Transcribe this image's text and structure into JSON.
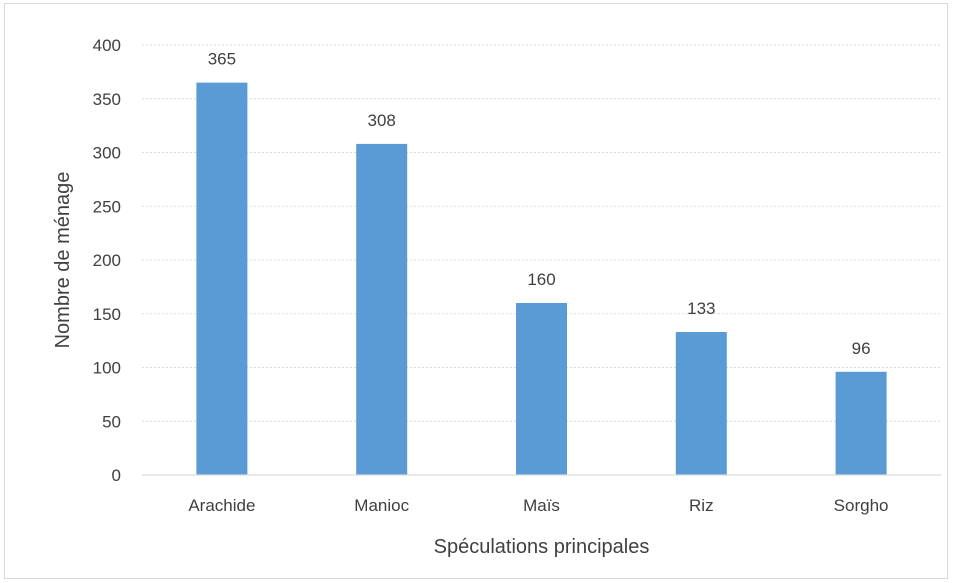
{
  "chart_data": {
    "type": "bar",
    "title": "",
    "xlabel": "Spéculations principales",
    "ylabel": "Nombre de ménage",
    "categories": [
      "Arachide",
      "Manioc",
      "Maïs",
      "Riz",
      "Sorgho"
    ],
    "values": [
      365,
      308,
      160,
      133,
      96
    ],
    "data_labels": [
      "365",
      "308",
      "160",
      "133",
      "96"
    ],
    "ylim": [
      0,
      400
    ],
    "yticks": [
      0,
      50,
      100,
      150,
      200,
      250,
      300,
      350,
      400
    ],
    "ytick_labels": [
      "0",
      "50",
      "100",
      "150",
      "200",
      "250",
      "300",
      "350",
      "400"
    ],
    "grid": true,
    "legend": "none",
    "bar_color": "#5b9bd5",
    "grid_color": "#d9d9d9",
    "text_color": "#404040"
  }
}
